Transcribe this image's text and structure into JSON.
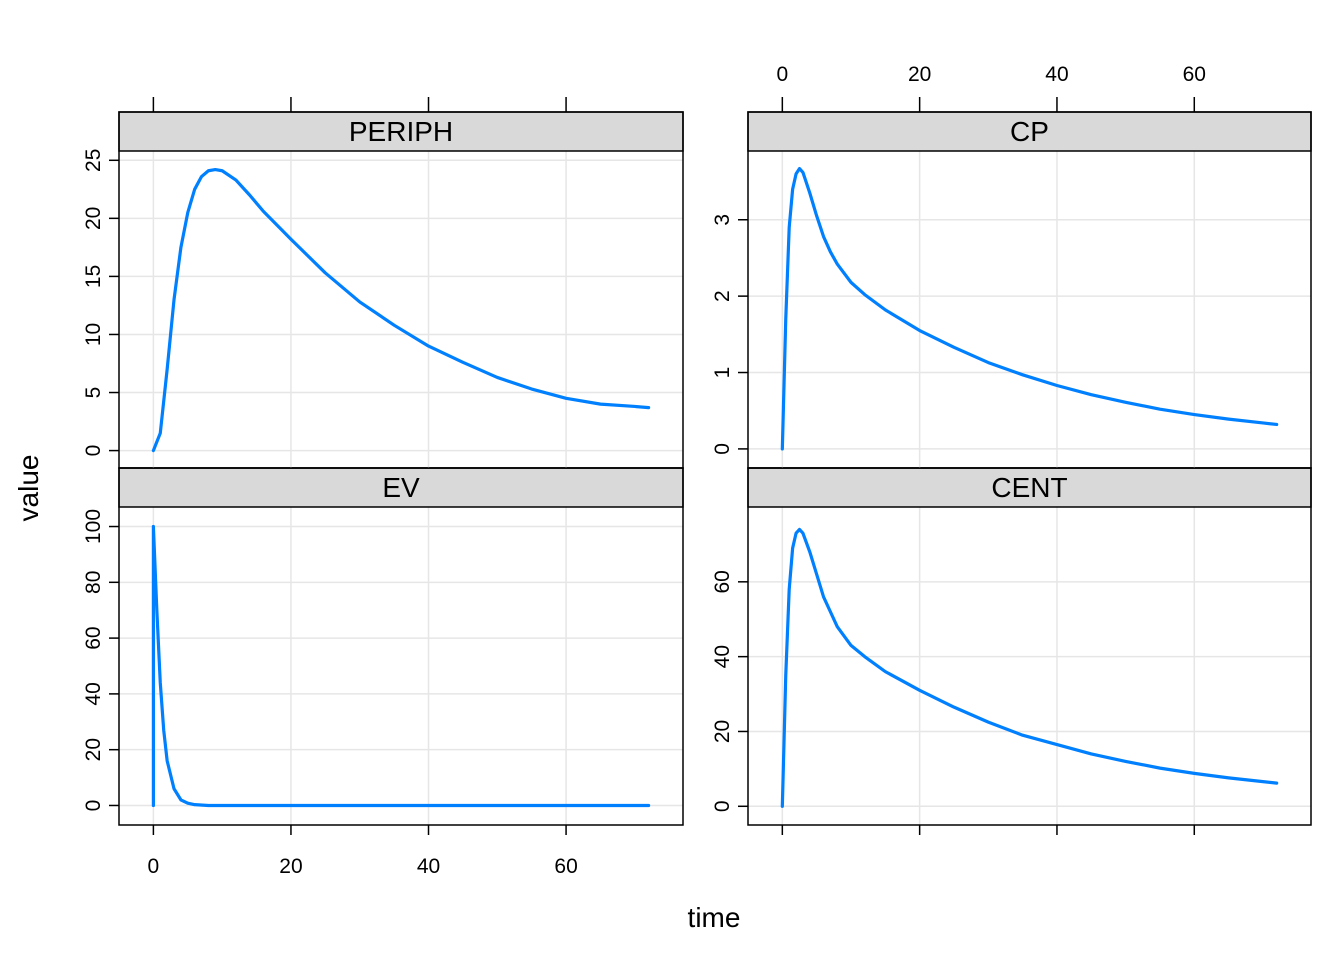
{
  "chart_data": {
    "type": "line",
    "layout": "lattice 2x2",
    "xlabel": "time",
    "ylabel": "value",
    "xlim": [
      -5,
      77
    ],
    "x_ticks": [
      0,
      20,
      40,
      60
    ],
    "grid": true,
    "colors": {
      "line": "#0080ff",
      "strip": "#d9d9d9",
      "grid": "#e6e6e6"
    },
    "panels": [
      {
        "name": "EV",
        "position": "bottom-left",
        "ylim": [
          -7,
          107
        ],
        "y_ticks": [
          0,
          20,
          40,
          60,
          80,
          100
        ],
        "points": [
          [
            0,
            0
          ],
          [
            0,
            100
          ],
          [
            0.5,
            70
          ],
          [
            1,
            44
          ],
          [
            1.5,
            27
          ],
          [
            2,
            16
          ],
          [
            3,
            6
          ],
          [
            4,
            2
          ],
          [
            5,
            0.8
          ],
          [
            6,
            0.3
          ],
          [
            8,
            0
          ],
          [
            20,
            0
          ],
          [
            40,
            0
          ],
          [
            60,
            0
          ],
          [
            72,
            0
          ]
        ]
      },
      {
        "name": "CENT",
        "position": "bottom-right",
        "ylim": [
          -5,
          80
        ],
        "y_ticks": [
          0,
          20,
          40,
          60
        ],
        "points": [
          [
            0,
            0
          ],
          [
            0.5,
            35
          ],
          [
            1,
            58
          ],
          [
            1.5,
            69
          ],
          [
            2,
            73
          ],
          [
            2.5,
            74
          ],
          [
            3,
            73
          ],
          [
            4,
            68
          ],
          [
            5,
            62
          ],
          [
            6,
            56
          ],
          [
            7,
            52
          ],
          [
            8,
            48
          ],
          [
            10,
            43
          ],
          [
            12,
            40
          ],
          [
            15,
            36
          ],
          [
            20,
            31
          ],
          [
            25,
            26.5
          ],
          [
            30,
            22.5
          ],
          [
            35,
            19
          ],
          [
            40,
            16.5
          ],
          [
            45,
            14
          ],
          [
            50,
            12
          ],
          [
            55,
            10.2
          ],
          [
            60,
            8.8
          ],
          [
            65,
            7.6
          ],
          [
            70,
            6.6
          ],
          [
            72,
            6.2
          ]
        ]
      },
      {
        "name": "PERIPH",
        "position": "top-left",
        "ylim": [
          -1.5,
          25.8
        ],
        "y_ticks": [
          0,
          5,
          10,
          15,
          20,
          25
        ],
        "points": [
          [
            0,
            0
          ],
          [
            1,
            1.5
          ],
          [
            2,
            7
          ],
          [
            3,
            13
          ],
          [
            4,
            17.5
          ],
          [
            5,
            20.5
          ],
          [
            6,
            22.5
          ],
          [
            7,
            23.6
          ],
          [
            8,
            24.1
          ],
          [
            9,
            24.2
          ],
          [
            10,
            24.1
          ],
          [
            12,
            23.3
          ],
          [
            14,
            22
          ],
          [
            16,
            20.6
          ],
          [
            20,
            18.2
          ],
          [
            25,
            15.3
          ],
          [
            30,
            12.8
          ],
          [
            35,
            10.8
          ],
          [
            40,
            9
          ],
          [
            45,
            7.6
          ],
          [
            50,
            6.3
          ],
          [
            55,
            5.3
          ],
          [
            60,
            4.5
          ],
          [
            65,
            4
          ],
          [
            70,
            3.8
          ],
          [
            72,
            3.7
          ]
        ]
      },
      {
        "name": "CP",
        "position": "top-right",
        "ylim": [
          -0.25,
          3.9
        ],
        "y_ticks": [
          0,
          1,
          2,
          3
        ],
        "points": [
          [
            0,
            0
          ],
          [
            0.5,
            1.7
          ],
          [
            1,
            2.9
          ],
          [
            1.5,
            3.4
          ],
          [
            2,
            3.6
          ],
          [
            2.5,
            3.67
          ],
          [
            3,
            3.62
          ],
          [
            4,
            3.35
          ],
          [
            5,
            3.05
          ],
          [
            6,
            2.78
          ],
          [
            7,
            2.58
          ],
          [
            8,
            2.42
          ],
          [
            10,
            2.18
          ],
          [
            12,
            2.02
          ],
          [
            15,
            1.82
          ],
          [
            20,
            1.55
          ],
          [
            25,
            1.33
          ],
          [
            30,
            1.13
          ],
          [
            35,
            0.97
          ],
          [
            40,
            0.83
          ],
          [
            45,
            0.71
          ],
          [
            50,
            0.61
          ],
          [
            55,
            0.52
          ],
          [
            60,
            0.45
          ],
          [
            65,
            0.39
          ],
          [
            70,
            0.34
          ],
          [
            72,
            0.32
          ]
        ]
      }
    ]
  }
}
